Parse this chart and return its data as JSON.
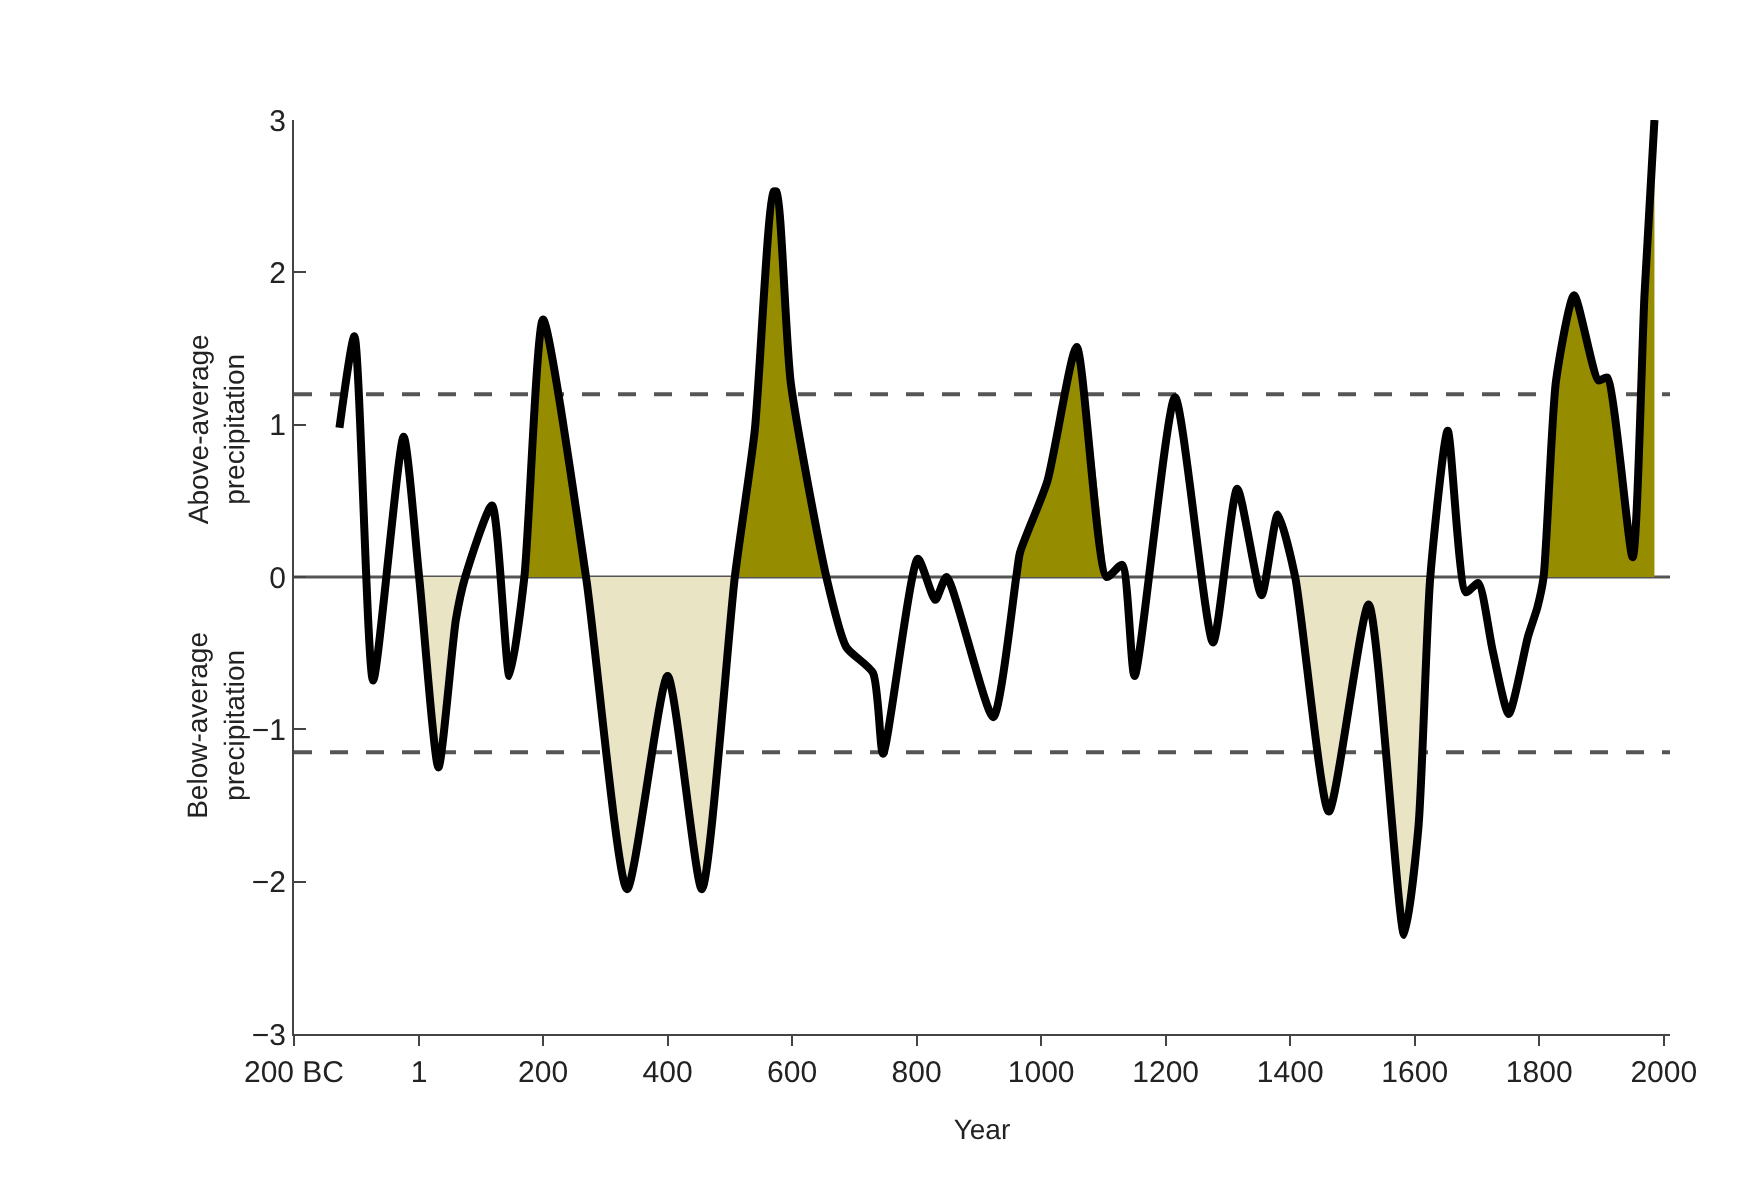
{
  "chart_data": {
    "type": "line",
    "xlabel": "Year",
    "annotations": [
      "Above-average\nprecipitation",
      "Below-average\nprecipitation"
    ],
    "xlim": [
      -200,
      2010
    ],
    "xticks": [
      {
        "value": -200,
        "label": "200 BC"
      },
      1,
      200,
      400,
      600,
      800,
      1000,
      1200,
      1400,
      1600,
      1800,
      2000
    ],
    "ylim": [
      -3,
      3
    ],
    "yticks": [
      {
        "value": -3,
        "label": "−3"
      },
      {
        "value": -2,
        "label": "−2"
      },
      {
        "value": -1,
        "label": "−1"
      },
      0,
      1,
      2,
      3
    ],
    "grid": false,
    "marker": "none",
    "ref_lines": [
      {
        "axis": "y",
        "value": 1.2,
        "color": "#555555",
        "line_style": "dashed"
      },
      {
        "axis": "y",
        "value": -1.15,
        "color": "#555555",
        "line_style": "dashed"
      },
      {
        "axis": "y",
        "value": 0,
        "color": "#555555",
        "line_style": "solid"
      }
    ],
    "series": [
      {
        "type": "area",
        "color": "#e8e4c4",
        "x": [
          1,
          32,
          60,
          75
        ],
        "values": [
          0,
          -1.25,
          -0.28,
          0
        ]
      },
      {
        "type": "area",
        "color": "#968c00",
        "x": [
          170,
          200,
          269
        ],
        "values": [
          0,
          1.69,
          0
        ]
      },
      {
        "type": "area",
        "color": "#e8e4c4",
        "x": [
          269,
          335,
          400,
          455,
          508
        ],
        "values": [
          0,
          -2.05,
          -0.65,
          -2.05,
          0
        ]
      },
      {
        "type": "area",
        "color": "#968c00",
        "x": [
          508,
          540,
          570,
          575,
          598,
          655
        ],
        "values": [
          0,
          0.96,
          2.53,
          2.53,
          1.27,
          0
        ]
      },
      {
        "type": "area",
        "color": "#968c00",
        "x": [
          960,
          966,
          1010,
          1057,
          1105
        ],
        "values": [
          0,
          0.16,
          0.63,
          1.51,
          0
        ]
      },
      {
        "type": "area",
        "color": "#e8e4c4",
        "x": [
          1408,
          1462,
          1526,
          1583,
          1606,
          1625
        ],
        "values": [
          0,
          -1.54,
          -0.18,
          -2.35,
          -1.64,
          0
        ]
      },
      {
        "type": "area",
        "color": "#968c00",
        "x": [
          1807,
          1827,
          1856,
          1895,
          1909,
          1950,
          1969,
          1985
        ],
        "values": [
          0,
          1.29,
          1.85,
          1.29,
          1.31,
          0.13,
          1.85,
          3.0
        ]
      },
      {
        "color": "#000000",
        "x": [
          -127,
          -103,
          -73,
          -24,
          1,
          32,
          60,
          75,
          118,
          146,
          170,
          200,
          269,
          335,
          400,
          455,
          508,
          540,
          570,
          575,
          598,
          655,
          687,
          730,
          746,
          802,
          830,
          848,
          923,
          960,
          966,
          1010,
          1057,
          1105,
          1130,
          1150,
          1215,
          1276,
          1315,
          1354,
          1380,
          1408,
          1462,
          1526,
          1583,
          1606,
          1625,
          1653,
          1682,
          1702,
          1725,
          1751,
          1782,
          1797,
          1807,
          1827,
          1856,
          1895,
          1909,
          1950,
          1969,
          1985
        ],
        "values": [
          0.98,
          1.58,
          -0.68,
          0.92,
          0,
          -1.25,
          -0.28,
          0,
          0.47,
          -0.65,
          0,
          1.69,
          0,
          -2.05,
          -0.65,
          -2.05,
          0,
          0.96,
          2.53,
          2.53,
          1.27,
          0,
          -0.46,
          -0.63,
          -1.16,
          0.12,
          -0.15,
          0,
          -0.92,
          0,
          0.16,
          0.63,
          1.51,
          0,
          0.08,
          -0.65,
          1.18,
          -0.43,
          0.58,
          -0.12,
          0.41,
          0,
          -1.54,
          -0.18,
          -2.35,
          -1.64,
          0,
          0.96,
          -0.1,
          -0.04,
          -0.48,
          -0.9,
          -0.39,
          -0.2,
          0,
          1.29,
          1.85,
          1.29,
          1.31,
          0.13,
          1.85,
          3.0
        ]
      }
    ]
  }
}
